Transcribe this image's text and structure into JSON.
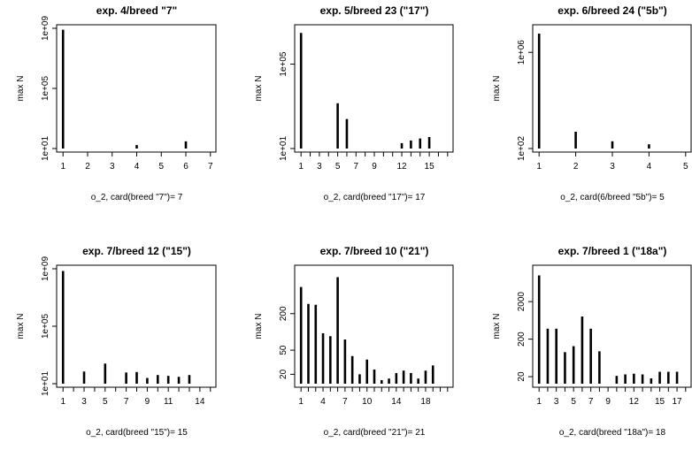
{
  "chart_data": [
    {
      "type": "bar",
      "title": "exp. 4/breed \"7\"",
      "xlabel": "o_2, card(breed \"7\")= 7",
      "ylabel": "max N",
      "yscale": "log",
      "ylim": [
        10,
        1000000000
      ],
      "yticks": [
        10,
        100000,
        1000000000
      ],
      "ytick_labels": [
        "1e+01",
        "1e+05",
        "1e+09"
      ],
      "xlim": [
        1,
        7
      ],
      "xticks": [
        1,
        2,
        3,
        4,
        5,
        6,
        7
      ],
      "x": [
        1,
        4,
        6
      ],
      "values": [
        800000000,
        17,
        30
      ]
    },
    {
      "type": "bar",
      "title": "exp. 5/breed 23 (\"17\")",
      "xlabel": "o_2, card(breed \"17\")= 17",
      "ylabel": "max N",
      "yscale": "log",
      "ylim": [
        10,
        5000000
      ],
      "yticks": [
        10,
        100000
      ],
      "ytick_labels": [
        "1e+01",
        "1e+05"
      ],
      "xlim": [
        1,
        17
      ],
      "xticks": [
        1,
        3,
        5,
        7,
        9,
        12,
        15
      ],
      "x": [
        1,
        5,
        6,
        12,
        13,
        14,
        15
      ],
      "values": [
        3000000,
        1400,
        250,
        18,
        24,
        30,
        35
      ]
    },
    {
      "type": "bar",
      "title": "exp. 6/breed 24 (\"5b\")",
      "xlabel": "o_2, card(6/breed \"5b\")= 5",
      "ylabel": "max N",
      "yscale": "log",
      "ylim": [
        100,
        10000000
      ],
      "yticks": [
        100,
        1000000
      ],
      "ytick_labels": [
        "1e+02",
        "1e+06"
      ],
      "xlim": [
        1,
        5
      ],
      "xticks": [
        1,
        2,
        3,
        4,
        5
      ],
      "x": [
        1,
        2,
        3,
        4
      ],
      "values": [
        6000000,
        500,
        200,
        150
      ]
    },
    {
      "type": "bar",
      "title": "exp. 7/breed 12 (\"15\")",
      "xlabel": "o_2, card(breed \"15\")= 15",
      "ylabel": "max N",
      "yscale": "log",
      "ylim": [
        10,
        1000000000
      ],
      "yticks": [
        10,
        100000,
        1000000000
      ],
      "ytick_labels": [
        "1e+01",
        "1e+05",
        "1e+09"
      ],
      "xlim": [
        1,
        15
      ],
      "xticks": [
        1,
        3,
        5,
        7,
        9,
        11,
        14
      ],
      "x": [
        1,
        3,
        5,
        7,
        8,
        9,
        10,
        11,
        12,
        13
      ],
      "values": [
        700000000,
        70,
        250,
        60,
        65,
        25,
        40,
        35,
        30,
        40
      ]
    },
    {
      "type": "bar",
      "title": "exp. 7/breed 10 (\"21\")",
      "xlabel": "o_2, card(breed \"21\")= 21",
      "ylabel": "max N",
      "yscale": "log",
      "ylim": [
        14,
        1100
      ],
      "yticks": [
        20,
        50,
        200
      ],
      "ytick_labels": [
        "20",
        "50",
        "200"
      ],
      "xlim": [
        1,
        21
      ],
      "xticks": [
        1,
        4,
        7,
        10,
        14,
        18
      ],
      "x": [
        1,
        2,
        3,
        4,
        5,
        6,
        7,
        8,
        9,
        10,
        11,
        12,
        13,
        14,
        15,
        16,
        17,
        18,
        19
      ],
      "values": [
        550,
        290,
        280,
        95,
        85,
        800,
        75,
        40,
        20,
        35,
        24,
        16,
        17,
        21,
        23,
        21,
        17,
        23,
        28
      ]
    },
    {
      "type": "bar",
      "title": "exp. 7/breed 1 (\"18a\")",
      "xlabel": "o_2, card(breed \"18a\")= 18",
      "ylabel": "max N",
      "yscale": "log",
      "ylim": [
        13,
        15000
      ],
      "yticks": [
        20,
        200,
        2000
      ],
      "ytick_labels": [
        "20",
        "200",
        "2000"
      ],
      "xlim": [
        1,
        18
      ],
      "xticks": [
        1,
        3,
        5,
        7,
        9,
        12,
        15,
        17
      ],
      "x": [
        1,
        2,
        3,
        4,
        5,
        6,
        7,
        8,
        9,
        10,
        11,
        12,
        13,
        14,
        15,
        16,
        17
      ],
      "values": [
        10000,
        380,
        380,
        90,
        130,
        800,
        380,
        95,
        13,
        21,
        23,
        24,
        23,
        18,
        27,
        27,
        27
      ]
    }
  ]
}
